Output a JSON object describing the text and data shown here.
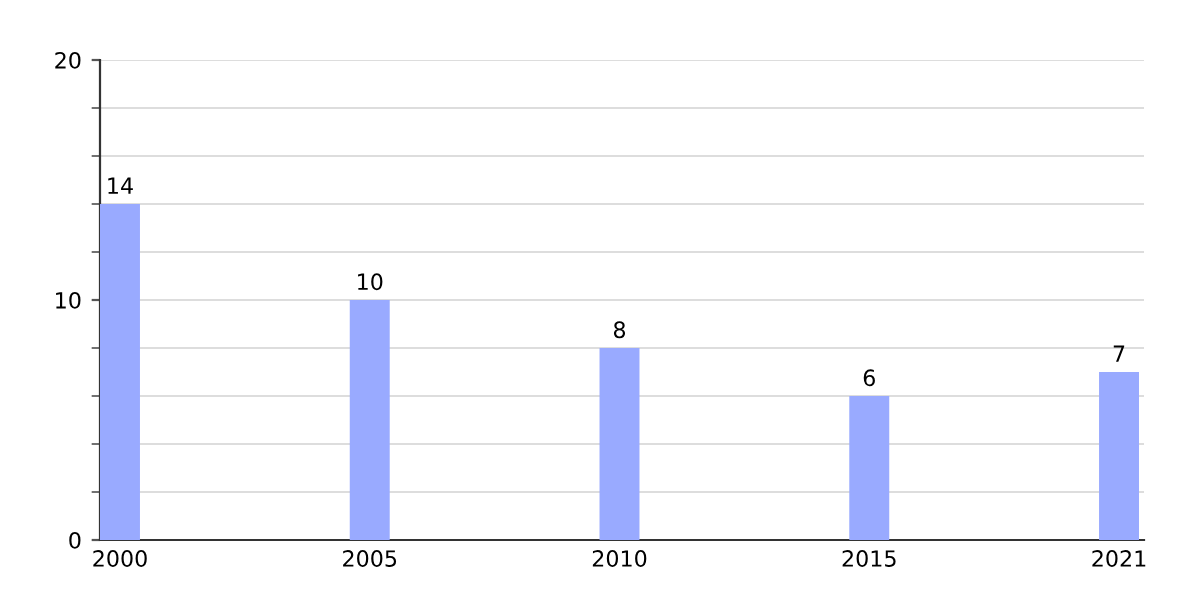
{
  "chart_data": {
    "type": "bar",
    "categories": [
      "2000",
      "2005",
      "2010",
      "2015",
      "2021"
    ],
    "values": [
      14,
      10,
      8,
      6,
      7
    ],
    "color": "#99aaff",
    "ylim": [
      0,
      20
    ],
    "yticks": [
      0,
      {
        "value": 2,
        "label": null
      },
      {
        "value": 4,
        "label": null
      },
      {
        "value": 6,
        "label": null
      },
      {
        "value": 8,
        "label": null
      },
      10,
      {
        "value": 12,
        "label": null
      },
      {
        "value": 14,
        "label": null
      },
      {
        "value": 16,
        "label": null
      },
      {
        "value": 18,
        "label": null
      },
      20
    ],
    "grid": "y",
    "data_labels": true
  }
}
